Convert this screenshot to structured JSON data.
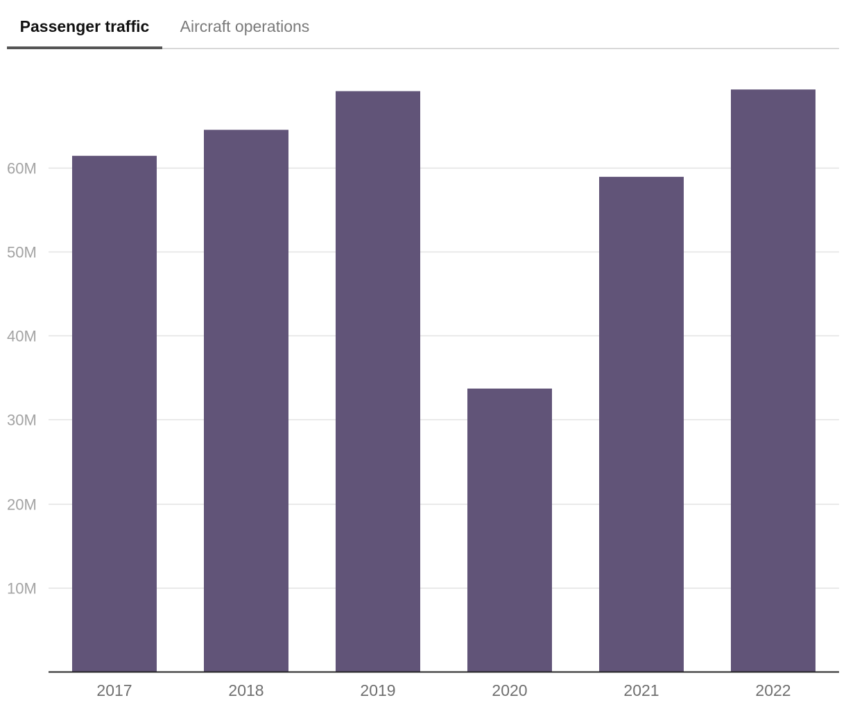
{
  "tabs": {
    "passenger_label": "Passenger traffic",
    "aircraft_label": "Aircraft operations",
    "active": "Passenger traffic"
  },
  "colors": {
    "bar": "#615478",
    "grid": "#e2e2e2",
    "axis": "#222222",
    "tab_underline": "#555555"
  },
  "chart_data": {
    "type": "bar",
    "title": "",
    "xlabel": "",
    "ylabel": "",
    "categories": [
      "2017",
      "2018",
      "2019",
      "2020",
      "2021",
      "2022"
    ],
    "values": [
      61400000,
      64500000,
      69100000,
      33700000,
      58900000,
      69300000
    ],
    "yticks": [
      10000000,
      20000000,
      30000000,
      40000000,
      50000000,
      60000000
    ],
    "ytick_labels": [
      "10M",
      "20M",
      "30M",
      "40M",
      "50M",
      "60M"
    ],
    "ylim": [
      0,
      70000000
    ],
    "grid": true,
    "legend": "none"
  }
}
